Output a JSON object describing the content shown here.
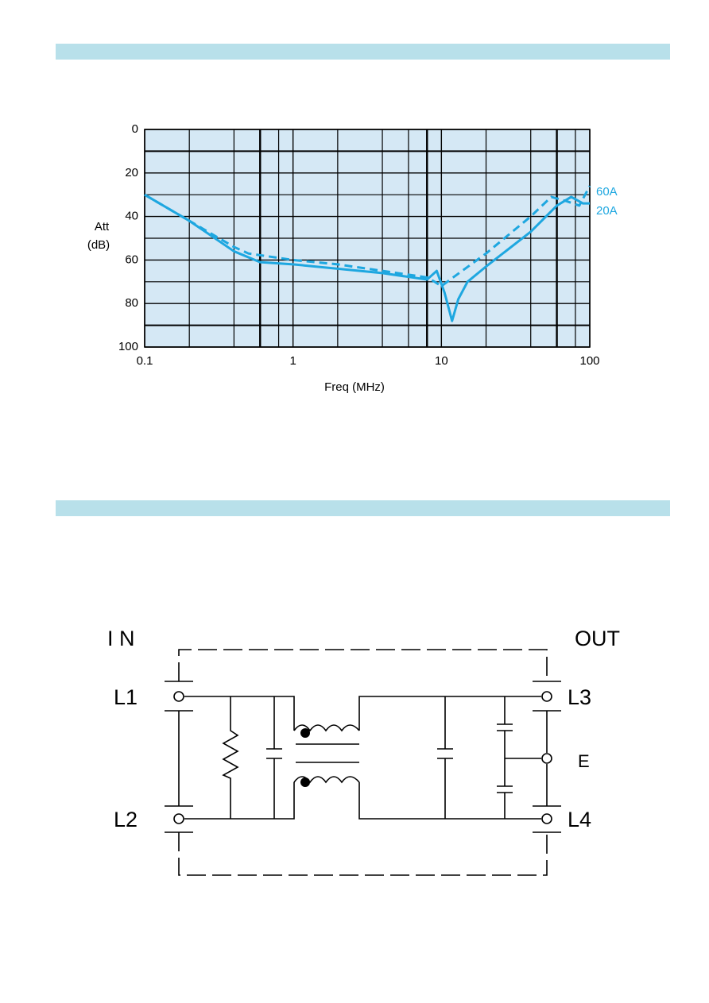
{
  "chart_data": {
    "type": "line",
    "xlabel": "Freq (MHz)",
    "ylabel": [
      "Att",
      "(dB)"
    ],
    "xscale": "log",
    "xlim": [
      0.1,
      100
    ],
    "xticks": [
      0.1,
      1,
      10,
      100
    ],
    "xminor": [
      0.2,
      0.4,
      0.6,
      0.8,
      2,
      4,
      6,
      8,
      20,
      40,
      60,
      80
    ],
    "ylim": [
      0,
      100
    ],
    "yinverted": true,
    "yticks": [
      0,
      20,
      40,
      60,
      80,
      100
    ],
    "yminor": [
      10,
      30,
      50,
      70,
      90
    ],
    "grid": true,
    "background": "#d5e8f5",
    "series": [
      {
        "name": "60A",
        "color": "#1ea7e0",
        "linestyle": "dashed",
        "x": [
          0.1,
          0.2,
          0.4,
          0.5,
          1,
          2,
          4,
          8,
          9,
          10,
          12,
          20,
          40,
          55,
          70,
          85,
          100
        ],
        "values": [
          30,
          42,
          54,
          57,
          60,
          62,
          65,
          68,
          70,
          72,
          68,
          57,
          40,
          31,
          33,
          35,
          26
        ]
      },
      {
        "name": "20A",
        "color": "#1ea7e0",
        "linestyle": "solid",
        "x": [
          0.1,
          0.2,
          0.4,
          0.6,
          1,
          2,
          4,
          8,
          9.3,
          10.5,
          11.8,
          13,
          15,
          20,
          40,
          60,
          75,
          90,
          100
        ],
        "values": [
          30,
          42,
          56,
          61,
          62,
          64,
          66,
          69,
          65,
          75,
          88,
          78,
          70,
          63,
          47,
          35,
          31,
          34,
          34
        ]
      }
    ]
  },
  "diagram": {
    "in": "I N",
    "out": "OUT",
    "l1": "L1",
    "l2": "L2",
    "l3": "L3",
    "l4": "L4",
    "e": "E"
  }
}
